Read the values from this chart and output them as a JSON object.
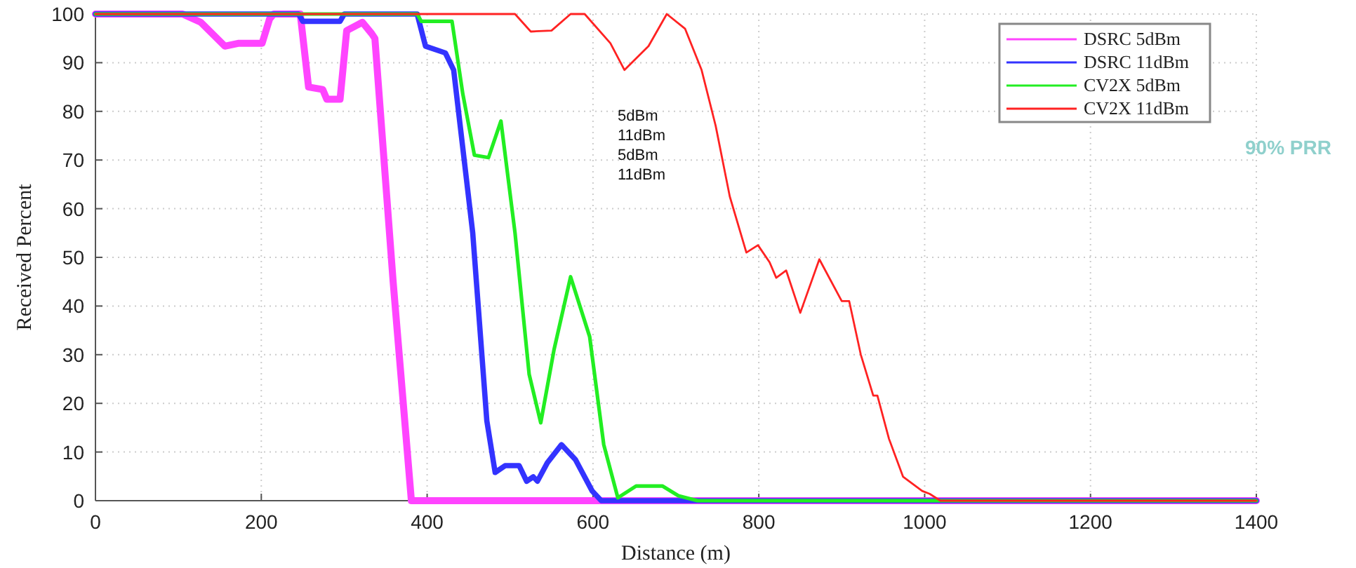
{
  "chart_data": {
    "type": "line",
    "xlabel": "Distance (m)",
    "ylabel": "Received Percent",
    "xlim": [
      0,
      1400
    ],
    "xticks": [
      0,
      200,
      400,
      600,
      800,
      1000,
      1200,
      1400
    ],
    "ylim": [
      0,
      100
    ],
    "yticks": [
      0,
      10,
      20,
      30,
      40,
      50,
      60,
      70,
      80,
      90,
      100
    ],
    "grid": true,
    "legend": "top right",
    "marker": "none",
    "line_style": "solid",
    "annotations": [
      "5dBm",
      "11dBm",
      "5dBm",
      "11dBm",
      "90% PRR"
    ],
    "series": [
      {
        "name": "DSRC 5dBm",
        "color": "#ff44ff",
        "x": [
          0,
          105,
          127,
          156,
          173,
          201,
          210,
          215,
          247,
          257,
          274,
          279,
          295,
          303,
          322,
          333,
          337,
          359,
          381,
          1400
        ],
        "values": [
          100,
          100,
          98.3,
          93.4,
          94,
          94,
          99,
          100,
          100,
          85,
          84.5,
          82.5,
          82.5,
          96.6,
          98.3,
          96,
          95,
          45,
          0,
          0
        ]
      },
      {
        "name": "DSRC 11dBm",
        "color": "#3333ff",
        "x": [
          0,
          245,
          250,
          295,
          300,
          388,
          398,
          422,
          432,
          455,
          472,
          482,
          494,
          511,
          520,
          528,
          533,
          545,
          562,
          579,
          599,
          610,
          1400
        ],
        "values": [
          100,
          100,
          98.5,
          98.5,
          100,
          100,
          93.4,
          92,
          88.5,
          55,
          16.4,
          5.8,
          7.2,
          7.2,
          4,
          4.9,
          4,
          7.8,
          11.5,
          8.4,
          2,
          0,
          0
        ]
      },
      {
        "name": "CV2X 5dBm",
        "color": "#22ee22",
        "x": [
          0,
          388,
          393,
          430,
          443,
          457,
          474,
          489,
          506,
          523,
          537,
          553,
          573,
          596,
          613,
          630,
          652,
          684,
          703,
          726,
          1400
        ],
        "values": [
          100,
          100,
          98.5,
          98.5,
          83.6,
          71,
          70.5,
          78,
          55,
          26,
          16,
          31,
          46,
          33.7,
          11.5,
          0.6,
          3,
          3,
          1,
          0,
          0
        ]
      },
      {
        "name": "CV2X 11dBm",
        "color": "#ff2222",
        "x": [
          0,
          506,
          525,
          550,
          573,
          590,
          621,
          638,
          667,
          689,
          711,
          731,
          748,
          765,
          785,
          799,
          813,
          821,
          833,
          850,
          873,
          900,
          909,
          923,
          938,
          943,
          957,
          974,
          997,
          1006,
          1019,
          1400
        ],
        "values": [
          100,
          100,
          96.4,
          96.6,
          100,
          100,
          94,
          88.5,
          93.4,
          100,
          97,
          88.5,
          77,
          62.5,
          51,
          52.5,
          49,
          45.8,
          47.3,
          38.6,
          49.6,
          41,
          41,
          30,
          21.6,
          21.6,
          12.7,
          4.9,
          2,
          1.4,
          0,
          0
        ]
      }
    ]
  }
}
